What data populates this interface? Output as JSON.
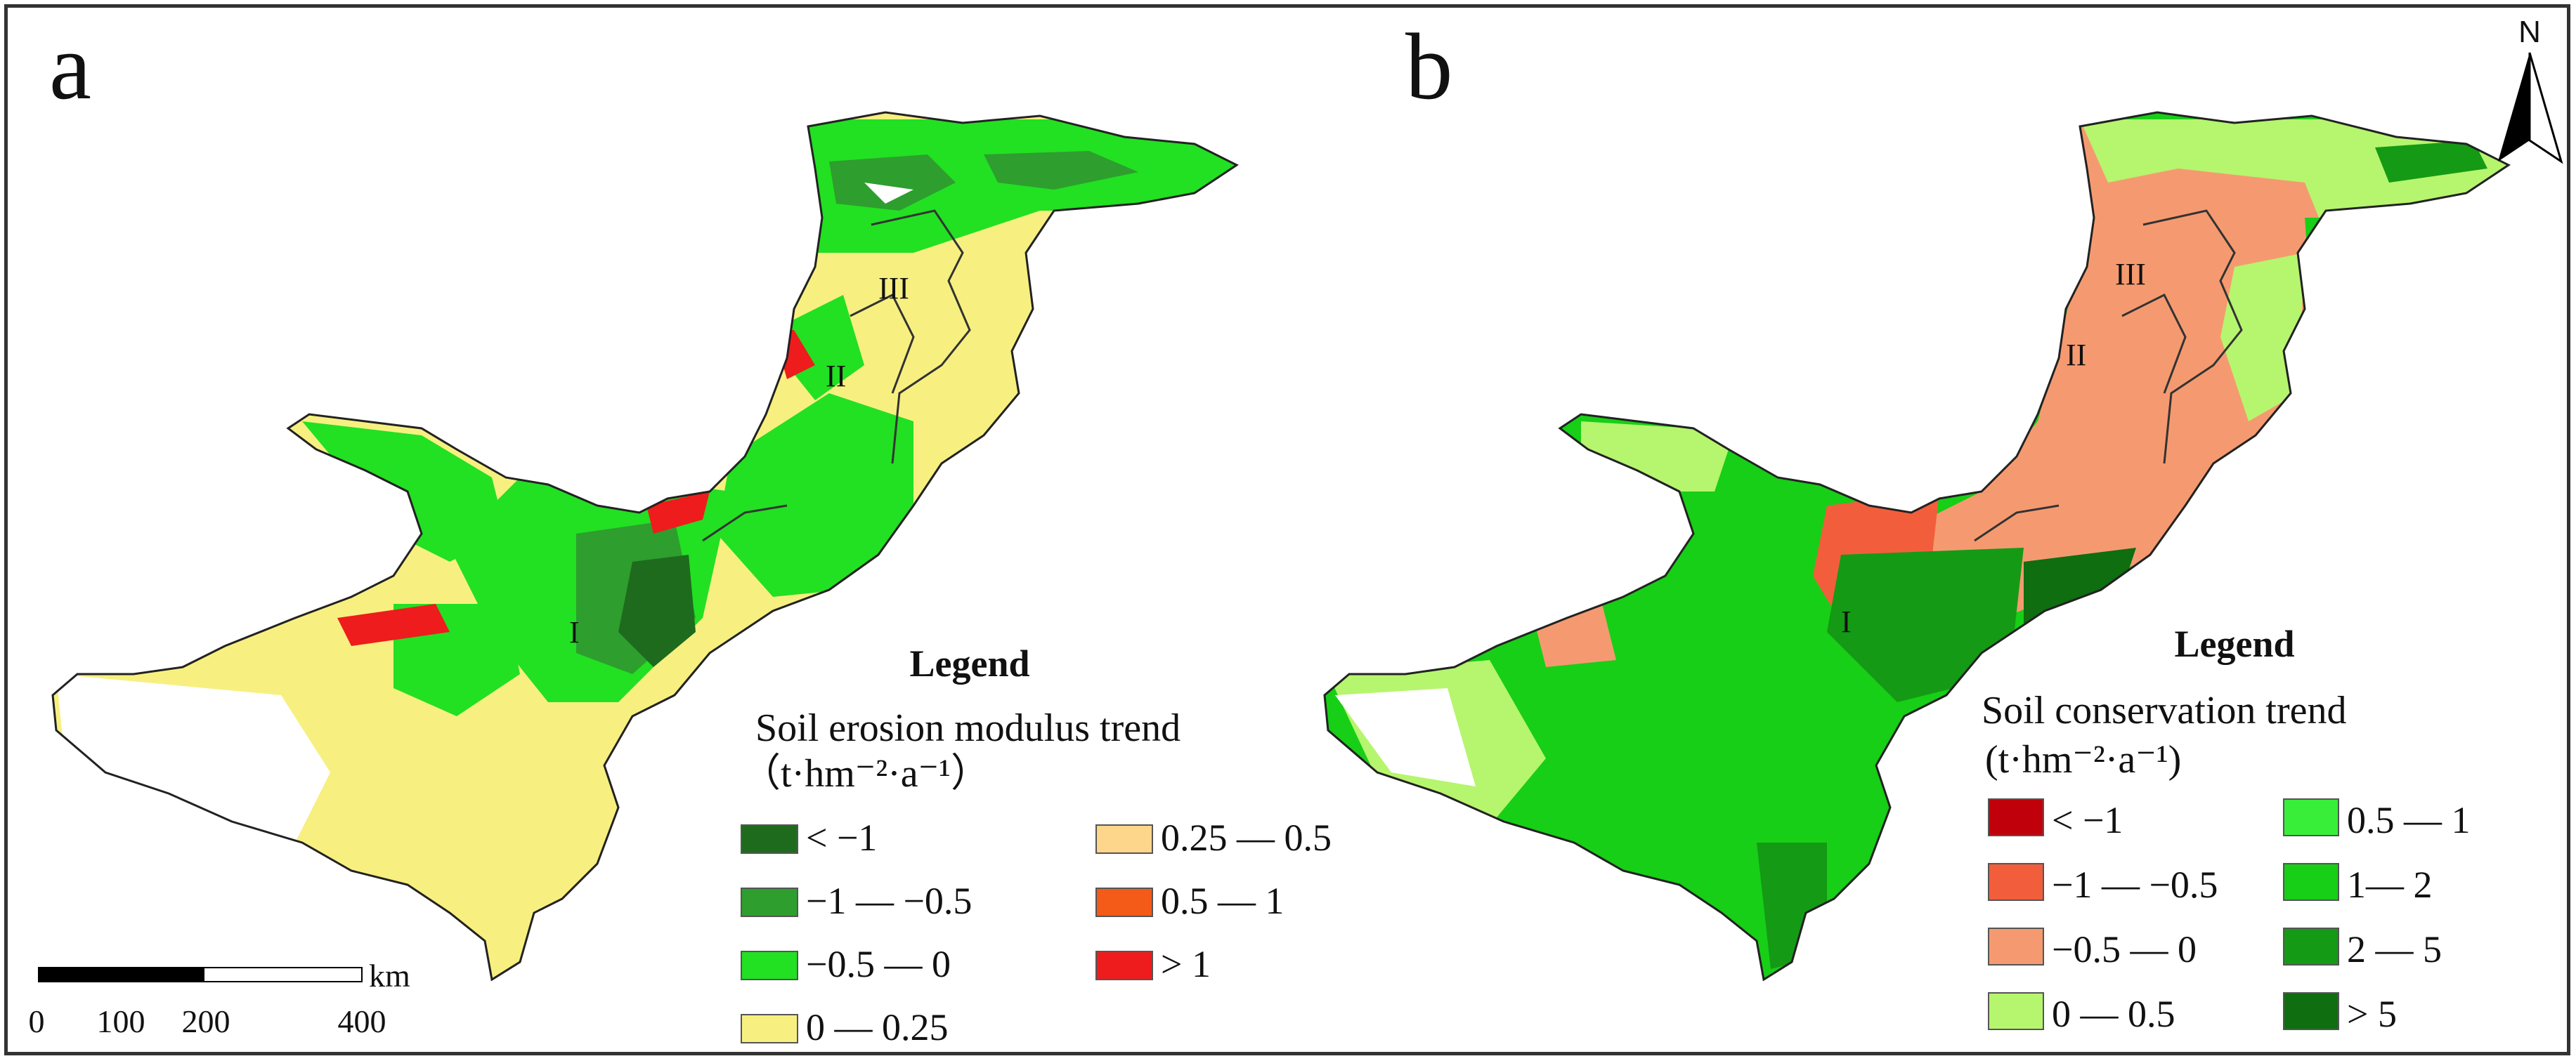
{
  "panels": [
    {
      "letter": "a",
      "legend_title": "Legend",
      "legend_subtitle": "Soil erosion modulus trend",
      "legend_unit": "（t·hm⁻²·a⁻¹）",
      "zones": [
        "I",
        "II",
        "III"
      ],
      "legend_items": [
        {
          "label": "< −1",
          "color": "#1e6b1e"
        },
        {
          "label": "0.25 — 0.5",
          "color": "#fdd68c"
        },
        {
          "label": "−1 — −0.5",
          "color": "#2e9e2e"
        },
        {
          "label": "0.5 — 1",
          "color": "#f45a18"
        },
        {
          "label": "−0.5 — 0",
          "color": "#22e022"
        },
        {
          "label": "> 1",
          "color": "#ee1c1c"
        },
        {
          "label": "0 — 0.25",
          "color": "#f7f080"
        }
      ]
    },
    {
      "letter": "b",
      "legend_title": "Legend",
      "legend_subtitle": "Soil conservation trend",
      "legend_unit": "(t·hm⁻²·a⁻¹)",
      "zones": [
        "I",
        "II",
        "III"
      ],
      "legend_items": [
        {
          "label": "< −1",
          "color": "#c0000a"
        },
        {
          "label": "0.5 — 1",
          "color": "#38ee38"
        },
        {
          "label": "−1 — −0.5",
          "color": "#f25e3c"
        },
        {
          "label": "1— 2",
          "color": "#16cf16"
        },
        {
          "label": "−0.5 — 0",
          "color": "#f59a70"
        },
        {
          "label": "2 — 5",
          "color": "#159a15"
        },
        {
          "label": "0 — 0.5",
          "color": "#b6f56e"
        },
        {
          "label": "> 5",
          "color": "#0f6e0f"
        }
      ]
    }
  ],
  "scale_bar": {
    "unit": "km",
    "ticks": [
      "0",
      "100",
      "200",
      "400"
    ]
  },
  "north_arrow": {
    "label": "N"
  }
}
